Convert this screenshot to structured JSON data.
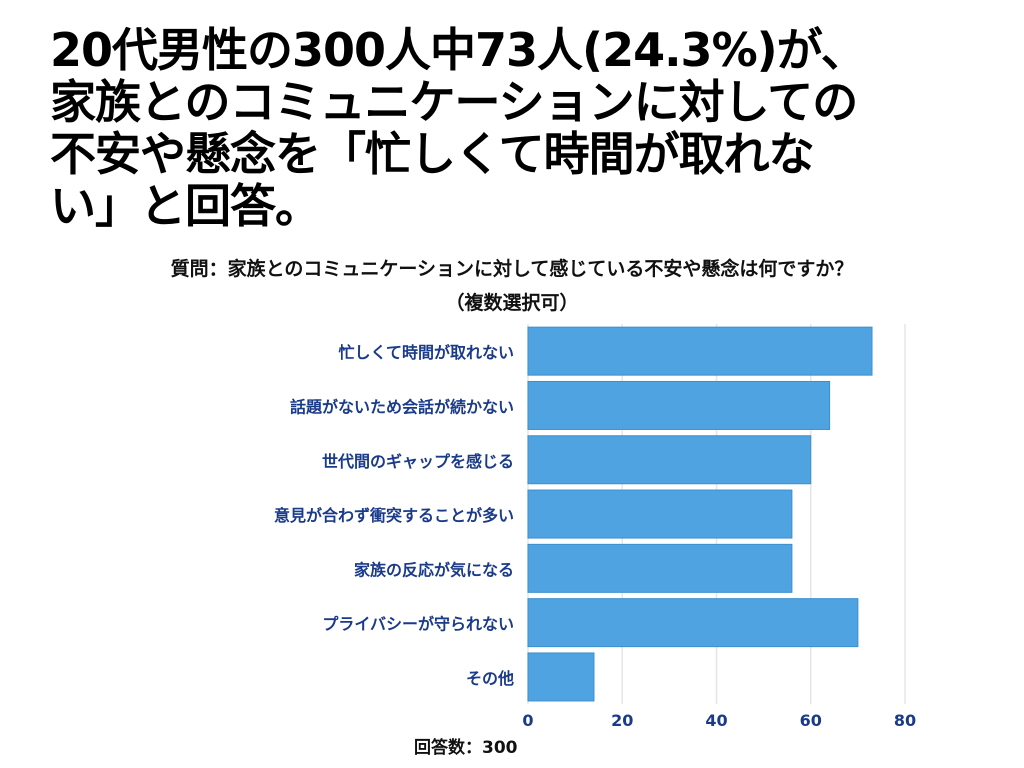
{
  "headline": {
    "line1": "20代男性の300人中73人(24.3%)が、",
    "line2": "家族とのコミュニケーションに対しての",
    "line3": "不安や懸念を「忙しくて時間が取れな",
    "line4": "い」と回答。"
  },
  "question": {
    "line1": "質問：家族とのコミュニケーションに対して感じている不安や懸念は何ですか？",
    "line2": "（複数選択可）"
  },
  "footer": {
    "respondents": "回答数：300"
  },
  "colors": {
    "bar": "#4fa3e0",
    "label": "#1a3a8a",
    "grid": "#e6e6e6"
  },
  "chart_data": {
    "type": "bar",
    "orientation": "horizontal",
    "categories": [
      "忙しくて時間が取れない",
      "話題がないため会話が続かない",
      "世代間のギャップを感じる",
      "意見が合わず衝突することが多い",
      "家族の反応が気になる",
      "プライバシーが守られない",
      "その他"
    ],
    "values": [
      73,
      64,
      60,
      56,
      56,
      70,
      14
    ],
    "xlim": [
      0,
      80
    ],
    "xticks": [
      0,
      20,
      40,
      60,
      80
    ],
    "grid": true,
    "legend": false
  }
}
